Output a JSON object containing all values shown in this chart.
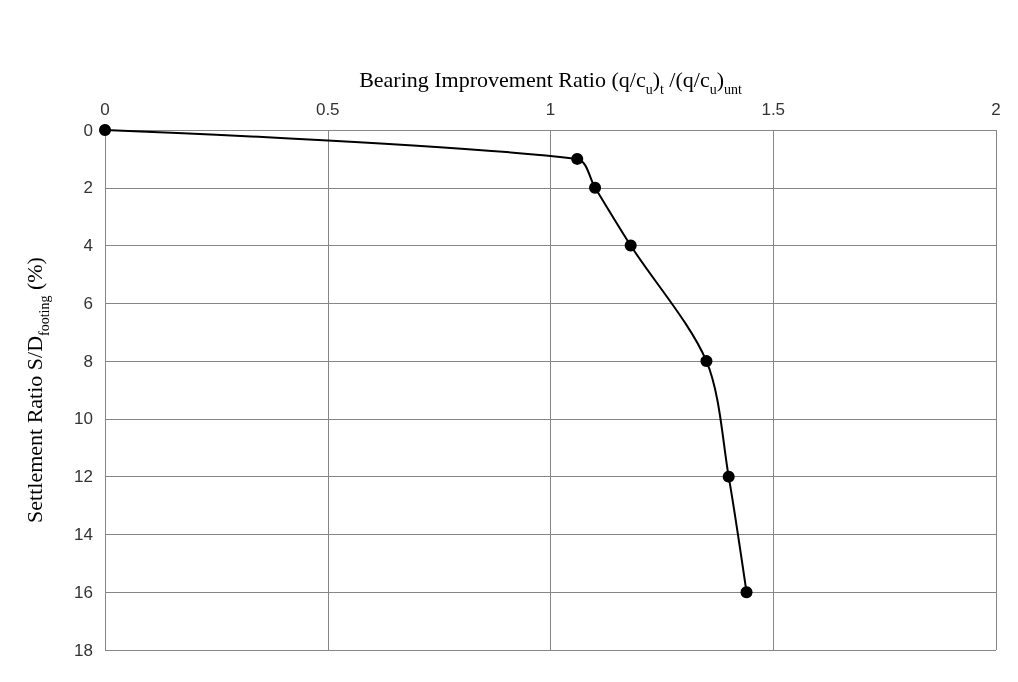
{
  "chart_data": {
    "type": "line",
    "xlabel": "Bearing Improvement Ratio (q/c$_{u}$)$_{t}$ /(q/c$_{u}$)$_{unt}$",
    "ylabel": "Settlement Ratio S/D$_{footing}$ (%)",
    "x": [
      0,
      1.06,
      1.1,
      1.18,
      1.35,
      1.4,
      1.44
    ],
    "series": [
      {
        "color": "#000000",
        "values": [
          0,
          1,
          2,
          4,
          8,
          12,
          16
        ]
      }
    ],
    "xlim": [
      0,
      2
    ],
    "xticks": [
      0,
      0.5,
      1,
      1.5,
      2
    ],
    "ylim": [
      18,
      0
    ],
    "yticks": [
      0,
      2,
      4,
      6,
      8,
      10,
      12,
      14,
      16,
      18
    ],
    "grid": true,
    "marker": "circle",
    "line_style": "solid"
  }
}
